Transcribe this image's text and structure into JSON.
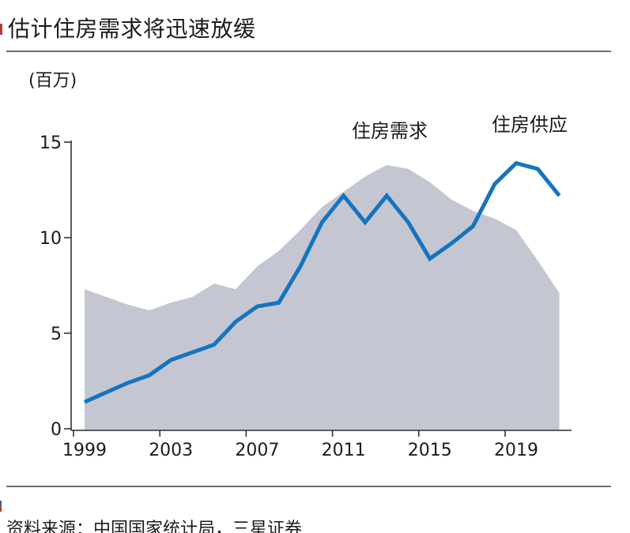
{
  "header": {
    "title": "估计住房需求将迅速放缓"
  },
  "chart": {
    "unit_label": "(百万)",
    "series_labels": {
      "demand": "住房需求",
      "supply": "住房供应"
    }
  },
  "footer": {
    "source": "资料来源：中国国家统计局，三星证券"
  },
  "colors": {
    "supply_line": "#1574bf",
    "demand_area": "#c4c7d1",
    "axis": "#262626",
    "rule": "#6e6e6e",
    "text": "#1b1b1b",
    "edge_mark_red": "#b23a36",
    "edge_mark_blue": "#3c5fa7"
  },
  "chart_data": {
    "type": "area",
    "title": "估计住房需求将迅速放缓",
    "ylabel": "(百万)",
    "ylim": [
      0,
      15
    ],
    "yticks": [
      0,
      5,
      10,
      15
    ],
    "xticks": [
      1999,
      2003,
      2007,
      2011,
      2015,
      2019
    ],
    "grid": false,
    "legend_position": "inline-labels",
    "x": [
      1999,
      2000,
      2001,
      2002,
      2003,
      2004,
      2005,
      2006,
      2007,
      2008,
      2009,
      2010,
      2011,
      2012,
      2013,
      2014,
      2015,
      2016,
      2017,
      2018,
      2019,
      2020,
      2021
    ],
    "series": [
      {
        "name": "住房需求",
        "style": "area",
        "color": "#c4c7d1",
        "values": [
          7.3,
          6.9,
          6.5,
          6.2,
          6.6,
          6.9,
          7.6,
          7.3,
          8.5,
          9.3,
          10.4,
          11.6,
          12.4,
          13.2,
          13.8,
          13.6,
          12.9,
          12.0,
          11.4,
          11.0,
          10.4,
          8.8,
          7.1
        ]
      },
      {
        "name": "住房供应",
        "style": "line",
        "color": "#1574bf",
        "values": [
          1.4,
          1.9,
          2.4,
          2.8,
          3.6,
          4.0,
          4.4,
          5.6,
          6.4,
          6.6,
          8.5,
          10.8,
          12.2,
          10.8,
          12.2,
          10.8,
          8.9,
          9.7,
          10.6,
          12.8,
          13.9,
          13.6,
          12.2
        ]
      }
    ]
  }
}
